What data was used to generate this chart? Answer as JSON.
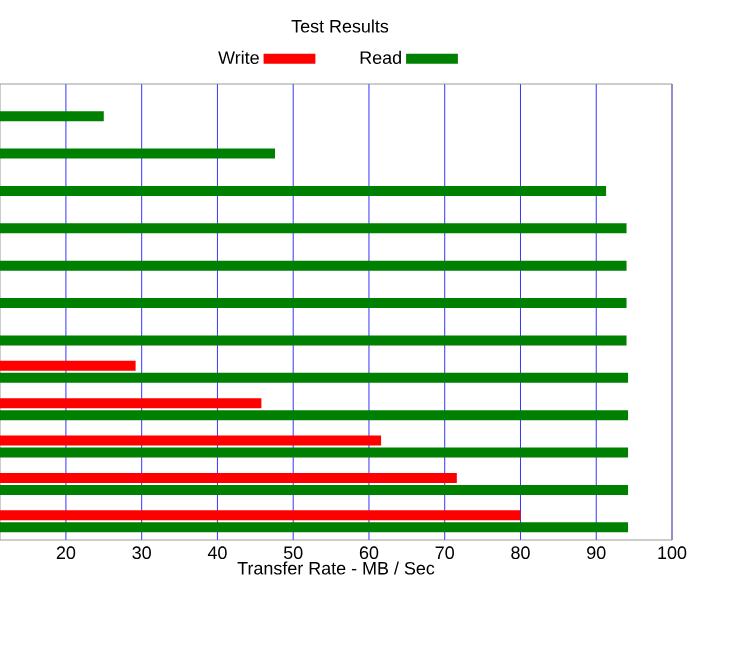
{
  "chart_data": {
    "type": "bar",
    "orientation": "horizontal",
    "title": "Test Results",
    "xlabel": "Transfer Rate - MB / Sec",
    "categories": [
      null,
      null,
      null,
      null,
      null,
      null,
      null,
      null,
      null,
      null,
      null,
      null
    ],
    "series": [
      {
        "name": "Write",
        "color": "#ff0000",
        "values": [
          null,
          null,
          null,
          null,
          null,
          null,
          null,
          29.2,
          45.8,
          61.6,
          71.6,
          80
        ]
      },
      {
        "name": "Read",
        "color": "#008000",
        "values": [
          25,
          47.6,
          91.3,
          94,
          94,
          94,
          94,
          94.2,
          94.2,
          94.2,
          94.2,
          94.2
        ]
      }
    ],
    "xlim": [
      11.3,
      100
    ],
    "xticks": [
      20,
      30,
      40,
      50,
      60,
      70,
      80,
      90,
      100
    ],
    "grid": "x",
    "legend": "top"
  }
}
